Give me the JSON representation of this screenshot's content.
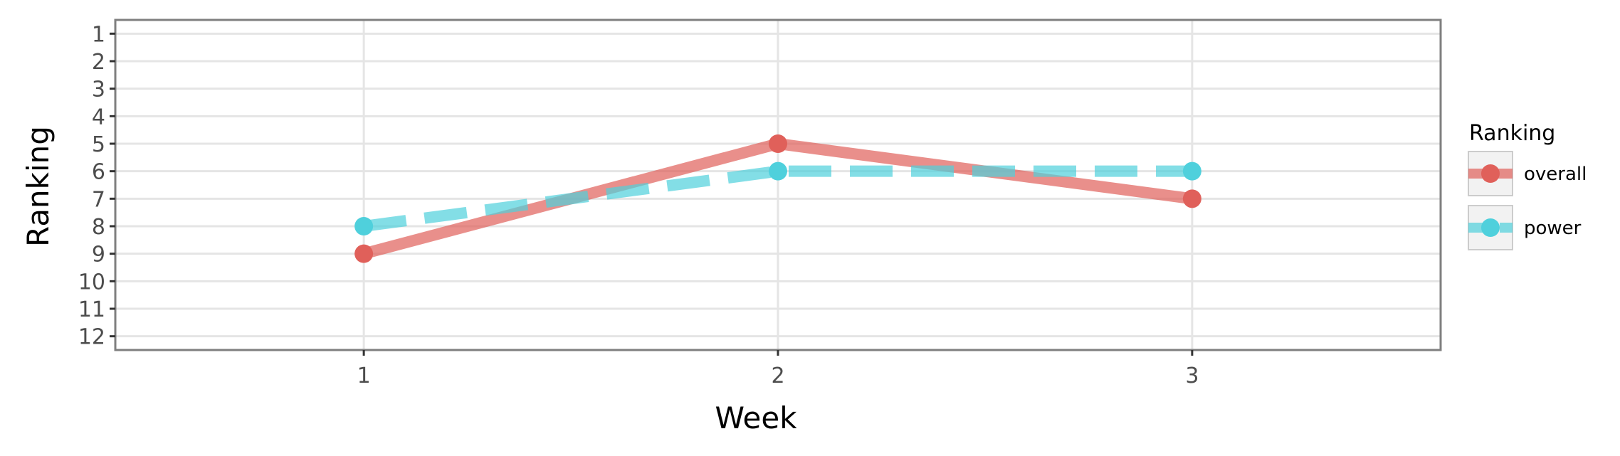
{
  "chart_data": {
    "type": "line",
    "xlabel": "Week",
    "ylabel": "Ranking",
    "x": [
      1,
      2,
      3
    ],
    "x_ticks": [
      "1",
      "2",
      "3"
    ],
    "xlim": [
      0.4,
      3.6
    ],
    "y_ticks": [
      "1",
      "2",
      "3",
      "4",
      "5",
      "6",
      "7",
      "8",
      "9",
      "10",
      "11",
      "12"
    ],
    "ylim": [
      12.5,
      0.5
    ],
    "y_reversed": true,
    "grid": true,
    "legend": {
      "title": "Ranking",
      "position": "right"
    },
    "series": [
      {
        "name": "overall",
        "values": [
          9,
          5,
          7
        ],
        "color": "#e0605a",
        "line_style": "solid"
      },
      {
        "name": "power",
        "values": [
          8,
          6,
          6
        ],
        "color": "#4fd0dc",
        "line_style": "dashed"
      }
    ]
  }
}
